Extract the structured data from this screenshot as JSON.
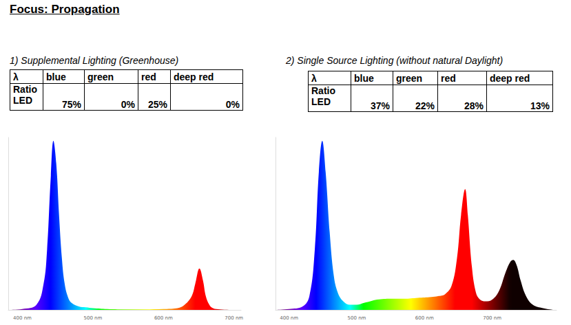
{
  "heading": "Focus: Propagation",
  "chart_data": [
    {
      "type": "area",
      "title": "1) Supplemental Lighting (Greenhouse)",
      "table": {
        "header": [
          "λ",
          "blue",
          "green",
          "red",
          "deep red"
        ],
        "rows": [
          [
            "Ratio LED",
            "75%",
            "0%",
            "25%",
            "0%"
          ]
        ]
      },
      "x": [
        380,
        400,
        420,
        430,
        435,
        440,
        444,
        448,
        452,
        456,
        460,
        465,
        470,
        480,
        490,
        500,
        520,
        550,
        600,
        620,
        630,
        640,
        645,
        651,
        656,
        660,
        665,
        670,
        680,
        700
      ],
      "values": [
        0,
        0.5,
        3,
        15,
        35,
        75,
        98,
        85,
        55,
        30,
        15,
        7,
        4,
        2,
        1.5,
        1,
        0.5,
        0.3,
        0.5,
        1,
        3,
        8,
        15,
        24,
        17,
        8,
        3,
        1,
        0.3,
        0
      ],
      "xlim": [
        380,
        710
      ],
      "xticks": [
        {
          "value": 400,
          "label": "400 nm"
        },
        {
          "value": 500,
          "label": "500 nm"
        },
        {
          "value": 600,
          "label": "600 nm"
        },
        {
          "value": 700,
          "label": "700 nm"
        }
      ],
      "ylim": [
        0,
        100
      ],
      "tick_labels": "x",
      "grid": false
    },
    {
      "type": "area",
      "title": "2) Single Source Lighting (without natural Daylight)",
      "table": {
        "header": [
          "λ",
          "blue",
          "green",
          "red",
          "deep red"
        ],
        "rows": [
          [
            "Ratio LED",
            "37%",
            "22%",
            "28%",
            "13%"
          ]
        ]
      },
      "x": [
        380,
        400,
        420,
        430,
        438,
        444,
        449,
        454,
        460,
        466,
        472,
        480,
        490,
        500,
        510,
        520,
        530,
        550,
        570,
        590,
        610,
        620,
        630,
        640,
        648,
        654,
        660,
        664,
        670,
        676,
        682,
        690,
        700,
        710,
        720,
        727,
        731,
        736,
        742,
        750,
        760,
        775,
        790
      ],
      "values": [
        0,
        0.5,
        2,
        8,
        35,
        80,
        98,
        80,
        45,
        20,
        10,
        5,
        3,
        3,
        4,
        5,
        6,
        6.5,
        6.5,
        7,
        7.5,
        8,
        9,
        14,
        30,
        55,
        70,
        55,
        25,
        10,
        6,
        5,
        6,
        11,
        22,
        28,
        29,
        26,
        17,
        8,
        3,
        1,
        0
      ],
      "xlim": [
        380,
        795
      ],
      "xticks": [
        {
          "value": 400,
          "label": "400 nm"
        },
        {
          "value": 500,
          "label": "500 nm"
        },
        {
          "value": 600,
          "label": "600 nm"
        },
        {
          "value": 700,
          "label": "700 nm"
        }
      ],
      "ylim": [
        0,
        100
      ],
      "tick_labels": "x",
      "grid": false
    }
  ]
}
